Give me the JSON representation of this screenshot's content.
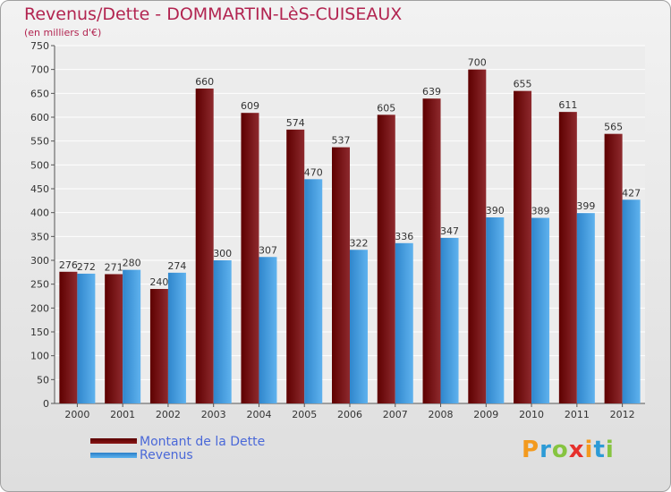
{
  "header": {
    "title": "Revenus/Dette - DOMMARTIN-LèS-CUISEAUX",
    "subtitle": "(en milliers d'€)"
  },
  "chart_data": {
    "type": "bar",
    "categories": [
      "2000",
      "2001",
      "2002",
      "2003",
      "2004",
      "2005",
      "2006",
      "2007",
      "2008",
      "2009",
      "2010",
      "2011",
      "2012"
    ],
    "series": [
      {
        "name": "Montant de la Dette",
        "values": [
          276,
          271,
          240,
          660,
          609,
          574,
          537,
          605,
          639,
          700,
          655,
          611,
          565
        ],
        "color": "#8b1a1a"
      },
      {
        "name": "Revenus",
        "values": [
          272,
          280,
          274,
          300,
          307,
          470,
          322,
          336,
          347,
          390,
          389,
          399,
          427
        ],
        "color": "#4aa3e6"
      }
    ],
    "ylim": [
      0,
      750
    ],
    "yticks": [
      0,
      50,
      100,
      150,
      200,
      250,
      300,
      350,
      400,
      450,
      500,
      550,
      600,
      650,
      700,
      750
    ],
    "grid": true,
    "legend": "bottom-left"
  },
  "legend": {
    "debt_label": "Montant de la Dette",
    "revenue_label": "Revenus"
  },
  "logo": {
    "letters": [
      "P",
      "r",
      "o",
      "x",
      "i",
      "t",
      "i"
    ],
    "colors": [
      "#f39a1e",
      "#2d9bd6",
      "#86c440",
      "#e6302c",
      "#f39a1e",
      "#2d9bd6",
      "#86c440"
    ]
  }
}
